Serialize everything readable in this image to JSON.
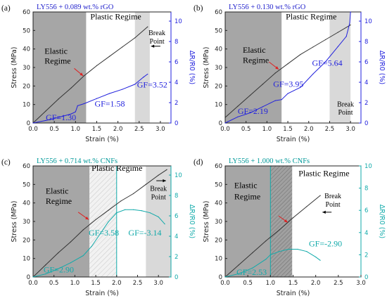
{
  "chart_data": [
    {
      "type": "line",
      "panel_label": "(a)",
      "title": "LY556 + 0.089 wt.% rGO",
      "title_color": "#2222cc",
      "stress_color": "#333333",
      "resistance_color": "#2222dd",
      "xlabel": "Strain (%)",
      "ylabel_left": "Stress (MPa)",
      "ylabel_right": "ΔR/R0 (%)",
      "xlim": [
        0,
        3.25
      ],
      "ylim_left": [
        0,
        60
      ],
      "ylim_right": [
        0,
        10.9
      ],
      "x_ticks": [
        "0.0",
        "0.5",
        "1.0",
        "1.5",
        "2.0",
        "2.5",
        "3.0"
      ],
      "y_left_ticks": [
        "0",
        "10",
        "20",
        "30",
        "40",
        "50",
        "60"
      ],
      "y_right_ticks": [
        "0",
        "2",
        "4",
        "6",
        "8",
        "10"
      ],
      "regions": [
        {
          "x0": 0,
          "x1": 1.25,
          "style": "dark"
        },
        {
          "x0": 2.4,
          "x1": 2.75,
          "style": "light"
        }
      ],
      "series": [
        {
          "axis": "left",
          "x": [
            0,
            0.3,
            0.6,
            0.9,
            1.2,
            1.5,
            1.8,
            2.1,
            2.4,
            2.7
          ],
          "values": [
            0,
            6.5,
            13,
            19,
            25.5,
            31,
            36,
            41,
            46,
            52
          ]
        },
        {
          "axis": "right",
          "x": [
            0,
            0.3,
            0.6,
            0.9,
            1.0,
            1.05,
            1.2,
            1.5,
            1.8,
            2.1,
            2.4,
            2.6,
            2.7
          ],
          "values": [
            0,
            0.25,
            0.55,
            0.9,
            1.1,
            1.7,
            1.9,
            2.4,
            2.9,
            3.3,
            3.8,
            4.5,
            4.8
          ]
        }
      ],
      "annotations": [
        {
          "text": "Plastic Regime",
          "x": 1.35,
          "y": 56,
          "align": "start",
          "color": "#000000",
          "size": 12
        },
        {
          "text": "Elastic",
          "x": 0.27,
          "y": 37.5,
          "align": "start",
          "color": "#000000",
          "size": 12
        },
        {
          "text": "Regime",
          "x": 0.27,
          "y": 32,
          "align": "start",
          "color": "#000000",
          "size": 12
        },
        {
          "text": "Break",
          "x": 2.92,
          "y": 47.5,
          "align": "middle",
          "color": "#000000",
          "size": 10
        },
        {
          "text": "Point",
          "x": 2.92,
          "y": 43,
          "align": "middle",
          "color": "#000000",
          "size": 10
        },
        {
          "text": "GF=1.30",
          "x": 0.3,
          "y": 1.5,
          "align": "start",
          "color": "#2222dd",
          "size": 12
        },
        {
          "text": "GF=1.58",
          "x": 1.45,
          "y": 9,
          "align": "start",
          "color": "#2222dd",
          "size": 12
        },
        {
          "text": "GF=3.52",
          "x": 2.45,
          "y": 19.2,
          "align": "start",
          "color": "#2222dd",
          "size": 12
        }
      ],
      "arrows": [
        {
          "x1": 0.97,
          "y1": 29.5,
          "x2": 1.18,
          "y2": 25.5,
          "color": "#dd2222"
        },
        {
          "x1": 3.0,
          "y1": 41.5,
          "x2": 2.78,
          "y2": 41.5,
          "color": "#000000"
        }
      ]
    },
    {
      "type": "line",
      "panel_label": "(b)",
      "title": "LY556 + 0.130 wt.% rGO",
      "title_color": "#2222cc",
      "stress_color": "#333333",
      "resistance_color": "#2222dd",
      "xlabel": "Strain (%)",
      "ylabel_left": "Stress (MPa)",
      "ylabel_right": "ΔR/R0 (%)",
      "xlim": [
        0,
        3.25
      ],
      "ylim_left": [
        0,
        60
      ],
      "ylim_right": [
        0,
        10.9
      ],
      "x_ticks": [
        "0.0",
        "0.5",
        "1.0",
        "1.5",
        "2.0",
        "2.5",
        "3.0"
      ],
      "y_left_ticks": [
        "0",
        "10",
        "20",
        "30",
        "40",
        "50",
        "60"
      ],
      "y_right_ticks": [
        "0",
        "2",
        "4",
        "6",
        "8",
        "10"
      ],
      "regions": [
        {
          "x0": 0,
          "x1": 1.35,
          "style": "dark"
        },
        {
          "x0": 2.5,
          "x1": 3.0,
          "style": "light"
        }
      ],
      "series": [
        {
          "axis": "left",
          "x": [
            0,
            0.3,
            0.6,
            0.9,
            1.2,
            1.5,
            1.8,
            2.1,
            2.4,
            2.7,
            3.0
          ],
          "values": [
            3,
            9,
            15,
            21,
            27,
            32,
            37,
            41,
            45,
            49,
            53
          ]
        },
        {
          "axis": "right",
          "x": [
            0,
            0.3,
            0.6,
            0.9,
            1.2,
            1.35,
            1.5,
            1.8,
            2.1,
            2.4,
            2.7,
            2.9,
            2.98,
            3.0
          ],
          "values": [
            0,
            0.6,
            1.0,
            1.6,
            2.2,
            2.3,
            2.9,
            3.5,
            4.8,
            6.0,
            7.5,
            8.5,
            9.8,
            10.9
          ]
        }
      ],
      "annotations": [
        {
          "text": "Plastic Regime",
          "x": 1.45,
          "y": 56,
          "align": "start",
          "color": "#000000",
          "size": 12
        },
        {
          "text": "Elastic",
          "x": 0.42,
          "y": 38,
          "align": "start",
          "color": "#000000",
          "size": 12
        },
        {
          "text": "Regime",
          "x": 0.42,
          "y": 32.5,
          "align": "start",
          "color": "#000000",
          "size": 12
        },
        {
          "text": "Break",
          "x": 2.88,
          "y": 9,
          "align": "middle",
          "color": "#000000",
          "size": 10
        },
        {
          "text": "Point",
          "x": 2.88,
          "y": 4.5,
          "align": "middle",
          "color": "#000000",
          "size": 10
        },
        {
          "text": "GF=2.19",
          "x": 0.3,
          "y": 5,
          "align": "start",
          "color": "#2222dd",
          "size": 12
        },
        {
          "text": "GF=3.95",
          "x": 1.15,
          "y": 19.5,
          "align": "start",
          "color": "#2222dd",
          "size": 12
        },
        {
          "text": "GF=5.64",
          "x": 2.08,
          "y": 31,
          "align": "start",
          "color": "#2222dd",
          "size": 12
        }
      ],
      "arrows": [
        {
          "x1": 1.05,
          "y1": 33,
          "x2": 1.28,
          "y2": 29,
          "color": "#dd2222"
        }
      ]
    },
    {
      "type": "line",
      "panel_label": "(c)",
      "title": "LY556 + 0.714 wt.% CNFs",
      "title_color": "#009999",
      "stress_color": "#333333",
      "resistance_color": "#11aaaa",
      "xlabel": "Strain (%)",
      "ylabel_left": "Stress (MPa)",
      "ylabel_right": "ΔR/R0 (%)",
      "xlim": [
        0,
        3.3
      ],
      "ylim_left": [
        0,
        60
      ],
      "ylim_right": [
        0,
        10.9
      ],
      "x_ticks": [
        "0.0",
        "0.5",
        "1.0",
        "1.5",
        "2.0",
        "2.5",
        "3.0"
      ],
      "y_left_ticks": [
        "0",
        "10",
        "20",
        "30",
        "40",
        "50",
        "60"
      ],
      "y_right_ticks": [
        "0",
        "2",
        "4",
        "6",
        "8",
        "10"
      ],
      "regions": [
        {
          "x0": 0,
          "x1": 1.35,
          "style": "dark"
        },
        {
          "x0": 1.35,
          "x1": 2.0,
          "style": "hatch"
        },
        {
          "x0": 2.7,
          "x1": 3.3,
          "style": "light"
        }
      ],
      "vlines": [
        2.0
      ],
      "series": [
        {
          "axis": "left",
          "x": [
            0,
            0.3,
            0.6,
            0.9,
            1.2,
            1.5,
            1.8,
            2.1,
            2.4,
            2.7,
            3.0,
            3.2
          ],
          "values": [
            0,
            6.5,
            13,
            19,
            25.5,
            31,
            36,
            41,
            45,
            50,
            55,
            58
          ]
        },
        {
          "axis": "right",
          "x": [
            0,
            0.3,
            0.6,
            0.9,
            1.2,
            1.4,
            1.6,
            1.8,
            2.0,
            2.2,
            2.4,
            2.6,
            2.8,
            3.0,
            3.15
          ],
          "values": [
            0,
            0.3,
            0.8,
            1.4,
            2.1,
            3.0,
            4.2,
            5.4,
            6.3,
            6.6,
            6.6,
            6.5,
            6.3,
            5.9,
            5.2
          ]
        }
      ],
      "annotations": [
        {
          "text": "Plastic Regime",
          "x": 1.4,
          "y": 57.3,
          "align": "start",
          "color": "#000000",
          "size": 12
        },
        {
          "text": "Elastic",
          "x": 0.3,
          "y": 45,
          "align": "start",
          "color": "#000000",
          "size": 12
        },
        {
          "text": "Regime",
          "x": 0.3,
          "y": 39.5,
          "align": "start",
          "color": "#000000",
          "size": 12
        },
        {
          "text": "Break",
          "x": 3.0,
          "y": 46.5,
          "align": "middle",
          "color": "#000000",
          "size": 10
        },
        {
          "text": "Point",
          "x": 3.0,
          "y": 42,
          "align": "middle",
          "color": "#000000",
          "size": 10
        },
        {
          "text": "GF=2.90",
          "x": 0.25,
          "y": 2.5,
          "align": "start",
          "color": "#11aaaa",
          "size": 12
        },
        {
          "text": "GF=3.58",
          "x": 1.33,
          "y": 22.5,
          "align": "start",
          "color": "#11aaaa",
          "size": 12
        },
        {
          "text": "GF=-3.14",
          "x": 2.28,
          "y": 22.5,
          "align": "start",
          "color": "#11aaaa",
          "size": 12
        }
      ],
      "arrows": [
        {
          "x1": 1.08,
          "y1": 35,
          "x2": 1.33,
          "y2": 31,
          "color": "#dd2222"
        },
        {
          "x1": 2.95,
          "y1": 52,
          "x2": 3.18,
          "y2": 52,
          "color": "#000000"
        }
      ]
    },
    {
      "type": "line",
      "panel_label": "(d)",
      "title": "LY556 + 1.000 wt.% CNFs",
      "title_color": "#009999",
      "stress_color": "#333333",
      "resistance_color": "#11aaaa",
      "xlabel": "Strain (%)",
      "ylabel_left": "Stress (MPa)",
      "ylabel_right": "ΔR/R0 (%)",
      "xlim": [
        0,
        3.0
      ],
      "ylim_left": [
        0,
        60
      ],
      "ylim_right": [
        0,
        10
      ],
      "x_ticks": [
        "0.0",
        "0.5",
        "1.0",
        "1.5",
        "2.0",
        "2.5",
        "3.0"
      ],
      "y_left_ticks": [
        "0",
        "10",
        "20",
        "30",
        "40",
        "50",
        "60"
      ],
      "y_right_ticks": [
        "0",
        "2",
        "4",
        "6",
        "8",
        "10"
      ],
      "regions": [
        {
          "x0": 0,
          "x1": 1.0,
          "style": "dark"
        },
        {
          "x0": 1.0,
          "x1": 1.48,
          "style": "hatchdark"
        }
      ],
      "vlines": [
        1.0
      ],
      "series": [
        {
          "axis": "left",
          "x": [
            0,
            0.3,
            0.6,
            0.9,
            1.2,
            1.5,
            1.8,
            2.1
          ],
          "values": [
            0,
            6.5,
            13,
            19.5,
            25.5,
            32,
            38,
            44
          ]
        },
        {
          "axis": "right",
          "x": [
            0,
            0.3,
            0.6,
            0.9,
            1.0,
            1.2,
            1.4,
            1.6,
            1.8,
            2.0,
            2.1
          ],
          "values": [
            0,
            0.3,
            0.8,
            1.6,
            2.0,
            2.3,
            2.5,
            2.5,
            2.3,
            1.8,
            1.5
          ]
        }
      ],
      "annotations": [
        {
          "text": "Plastic Regime",
          "x": 1.62,
          "y": 54.5,
          "align": "start",
          "color": "#000000",
          "size": 12
        },
        {
          "text": "Elastic",
          "x": 0.2,
          "y": 48,
          "align": "start",
          "color": "#000000",
          "size": 12
        },
        {
          "text": "Regime",
          "x": 0.2,
          "y": 42,
          "align": "start",
          "color": "#000000",
          "size": 12
        },
        {
          "text": "Break",
          "x": 2.38,
          "y": 42.5,
          "align": "middle",
          "color": "#000000",
          "size": 10
        },
        {
          "text": "Point",
          "x": 2.38,
          "y": 38,
          "align": "middle",
          "color": "#000000",
          "size": 10
        },
        {
          "text": "GF=2.53",
          "x": 0.25,
          "y": 1.2,
          "align": "start",
          "color": "#11aaaa",
          "size": 12
        },
        {
          "text": "GF=-2.90",
          "x": 1.85,
          "y": 16.5,
          "align": "start",
          "color": "#11aaaa",
          "size": 12
        }
      ],
      "arrows": [
        {
          "x1": 1.18,
          "y1": 33,
          "x2": 1.38,
          "y2": 29.5,
          "color": "#dd2222"
        },
        {
          "x1": 2.35,
          "y1": 35,
          "x2": 2.15,
          "y2": 35,
          "color": "#000000"
        }
      ]
    }
  ]
}
